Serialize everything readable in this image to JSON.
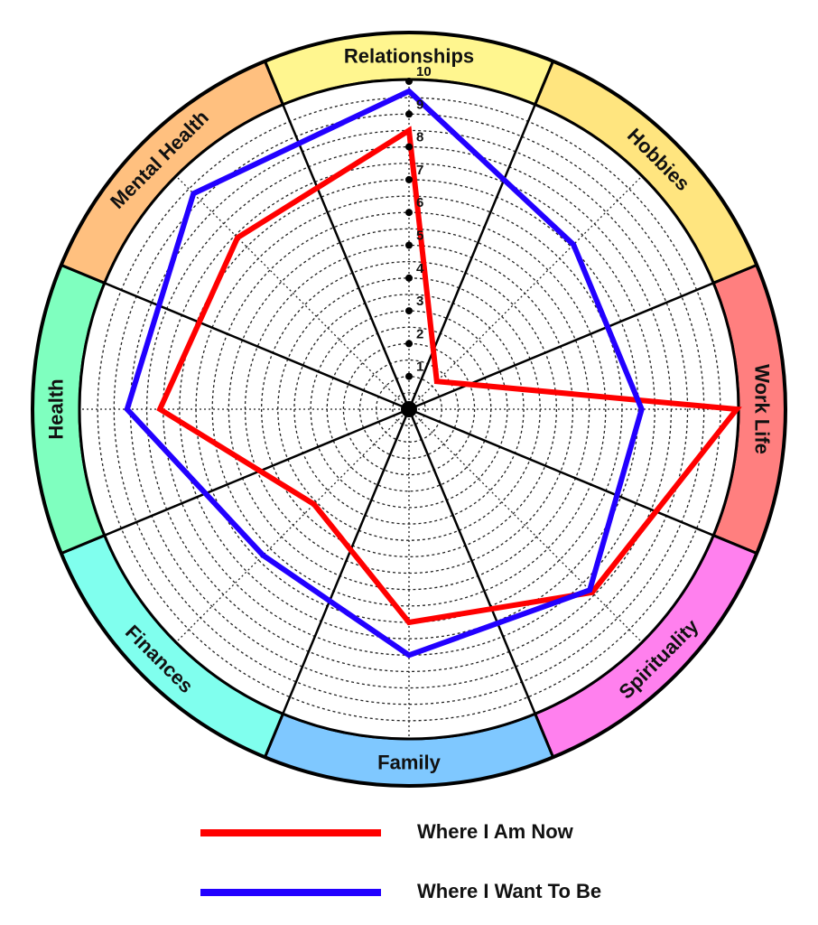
{
  "chart_data": {
    "type": "radar",
    "categories": [
      "Relationships",
      "Hobbies",
      "Work Life",
      "Spirituality",
      "Family",
      "Finances",
      "Health",
      "Mental Health"
    ],
    "category_colors": [
      "#fff68f",
      "#ffe57f",
      "#ff7f7f",
      "#ff80ee",
      "#7fc8ff",
      "#80ffee",
      "#7fffbf",
      "#ffc07f"
    ],
    "r_ticks": [
      "1",
      "2",
      "3",
      "4",
      "5",
      "6",
      "7",
      "8",
      "9",
      "10"
    ],
    "r_range": [
      0,
      10
    ],
    "grid": true,
    "legend_position": "bottom",
    "series": [
      {
        "name": "Where I Am Now",
        "color": "#ff0000",
        "values": [
          8.5,
          1.2,
          10.0,
          7.9,
          6.5,
          4.1,
          7.6,
          7.4
        ]
      },
      {
        "name": "Where I Want To Be",
        "color": "#2200ff",
        "values": [
          9.7,
          7.1,
          7.1,
          7.8,
          7.5,
          6.3,
          8.6,
          9.3
        ]
      }
    ]
  }
}
